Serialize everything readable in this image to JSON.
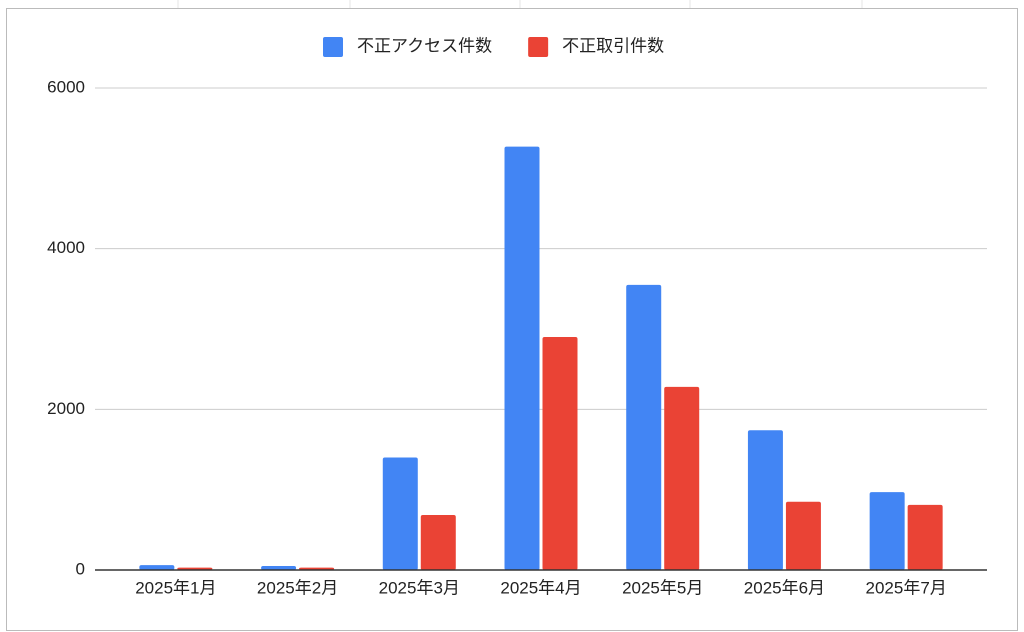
{
  "chart_data": {
    "type": "bar",
    "categories": [
      "2025年1月",
      "2025年2月",
      "2025年3月",
      "2025年4月",
      "2025年5月",
      "2025年6月",
      "2025年7月"
    ],
    "series": [
      {
        "name": "不正アクセス件数",
        "color": "#4285f4",
        "values": [
          60,
          50,
          1400,
          5270,
          3550,
          1740,
          970
        ]
      },
      {
        "name": "不正取引件数",
        "color": "#ea4335",
        "values": [
          30,
          30,
          685,
          2900,
          2280,
          850,
          810
        ]
      }
    ],
    "ylim": [
      0,
      6000
    ],
    "yticks": [
      0,
      2000,
      4000,
      6000
    ],
    "grid": true,
    "legend": "top"
  }
}
